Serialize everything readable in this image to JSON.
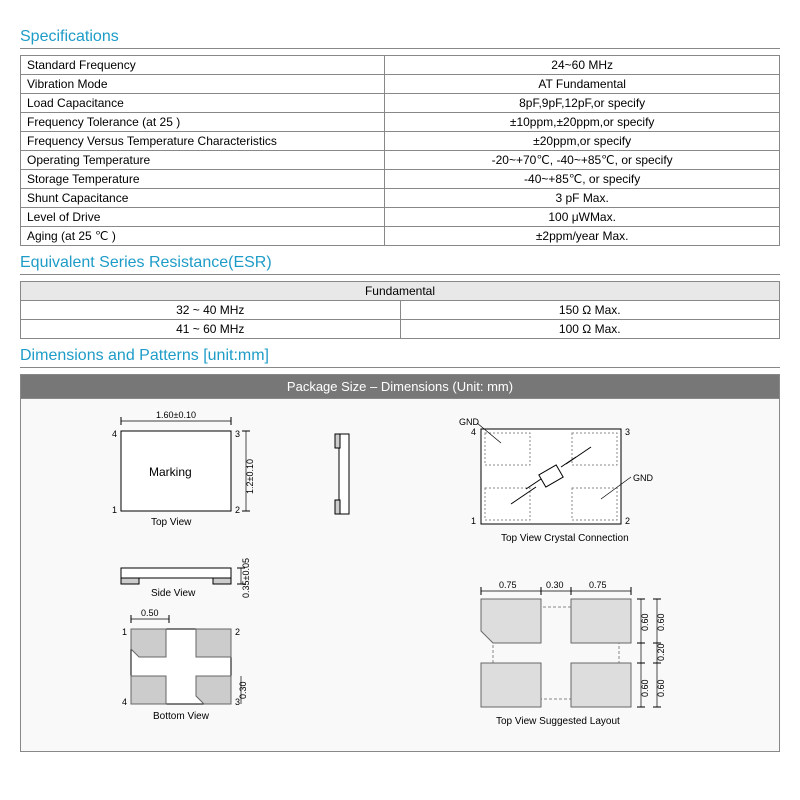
{
  "sections": {
    "specs_title": "Specifications",
    "esr_title": "Equivalent Series Resistance(ESR)",
    "dims_title": "Dimensions and Patterns  [unit:mm]"
  },
  "specs": [
    {
      "label": "Standard Frequency",
      "value": "24~60  MHz"
    },
    {
      "label": "Vibration Mode",
      "value": "AT Fundamental"
    },
    {
      "label": "Load Capacitance",
      "value": "8pF,9pF,12pF,or specify"
    },
    {
      "label": "Frequency Tolerance (at 25 )",
      "value": "±10ppm,±20ppm,or specify"
    },
    {
      "label": "Frequency Versus Temperature Characteristics",
      "value": "±20ppm,or specify"
    },
    {
      "label": "Operating Temperature",
      "value": "-20~+70℃,   -40~+85℃,  or specify"
    },
    {
      "label": "Storage Temperature",
      "value": "-40~+85℃,   or specify"
    },
    {
      "label": "Shunt Capacitance",
      "value": "3 pF Max."
    },
    {
      "label": "Level of Drive",
      "value": "100 μWMax."
    },
    {
      "label": "Aging (at 25  ℃ )",
      "value": "±2ppm/year Max."
    }
  ],
  "esr_header": "Fundamental",
  "esr": [
    {
      "range": "32 ~ 40 MHz",
      "value": "150   Ω  Max."
    },
    {
      "range": "41 ~ 60 MHz",
      "value": "100   Ω  Max."
    }
  ],
  "pkg_header": "Package Size – Dimensions (Unit: mm)",
  "diagrams": {
    "top_view": {
      "caption": "Top View",
      "w_label": "1.60±0.10",
      "h_label": "1.2±0.10",
      "marking": "Marking",
      "pins": [
        "1",
        "2",
        "3",
        "4"
      ]
    },
    "side_view": {
      "caption": "Side View",
      "h_label": "0.35±0.05"
    },
    "bottom_view": {
      "caption": "Bottom View",
      "w_label": "0.50",
      "h_label": "0.30",
      "pins": [
        "1",
        "2",
        "3",
        "4"
      ]
    },
    "crystal_conn": {
      "caption": "Top View Crystal Connection",
      "gnd": "GND",
      "pins": [
        "1",
        "2",
        "3",
        "4"
      ]
    },
    "suggested": {
      "caption": "Top View Suggested Layout",
      "dims_top": [
        "0.75",
        "0.30",
        "0.75"
      ],
      "dims_right": [
        "0.60",
        "0.20",
        "0.60"
      ]
    }
  },
  "colors": {
    "heading": "#1e9cc8",
    "border": "#888888",
    "pkg_header_bg": "#777777",
    "pad_fill": "#cccccc"
  }
}
